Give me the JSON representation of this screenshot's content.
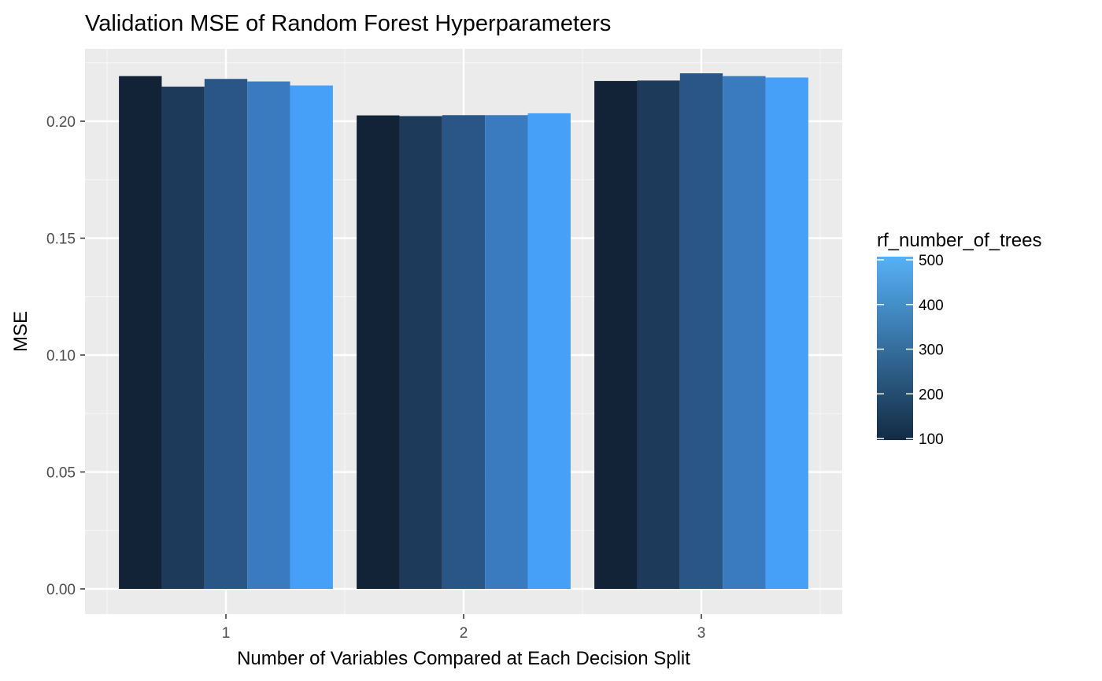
{
  "chart_data": {
    "type": "bar",
    "title": "Validation MSE of Random Forest Hyperparameters",
    "xlabel": "Number of Variables Compared at Each Decision Split",
    "ylabel": "MSE",
    "categories": [
      "1",
      "2",
      "3"
    ],
    "ylim": [
      0,
      0.22
    ],
    "y_ticks": [
      "0.00",
      "0.05",
      "0.10",
      "0.15",
      "0.20"
    ],
    "grid": true,
    "legend": {
      "title": "rf_number_of_trees",
      "type": "continuous-colorbar",
      "placement": "right",
      "range": [
        100,
        500
      ],
      "ticks": [
        "100",
        "200",
        "300",
        "400",
        "500"
      ],
      "color_low": "#132B43",
      "color_high": "#56B1F7"
    },
    "series": [
      {
        "trees": 100,
        "color": "#132337",
        "values": [
          0.2193,
          0.2025,
          0.2172
        ]
      },
      {
        "trees": 200,
        "color": "#1E3A5A",
        "values": [
          0.2148,
          0.2022,
          0.2174
        ]
      },
      {
        "trees": 300,
        "color": "#2A5687",
        "values": [
          0.2181,
          0.2026,
          0.2205
        ]
      },
      {
        "trees": 400,
        "color": "#3A7ABE",
        "values": [
          0.217,
          0.2026,
          0.2193
        ]
      },
      {
        "trees": 500,
        "color": "#47A0F7",
        "values": [
          0.2153,
          0.2034,
          0.2187
        ]
      }
    ]
  }
}
